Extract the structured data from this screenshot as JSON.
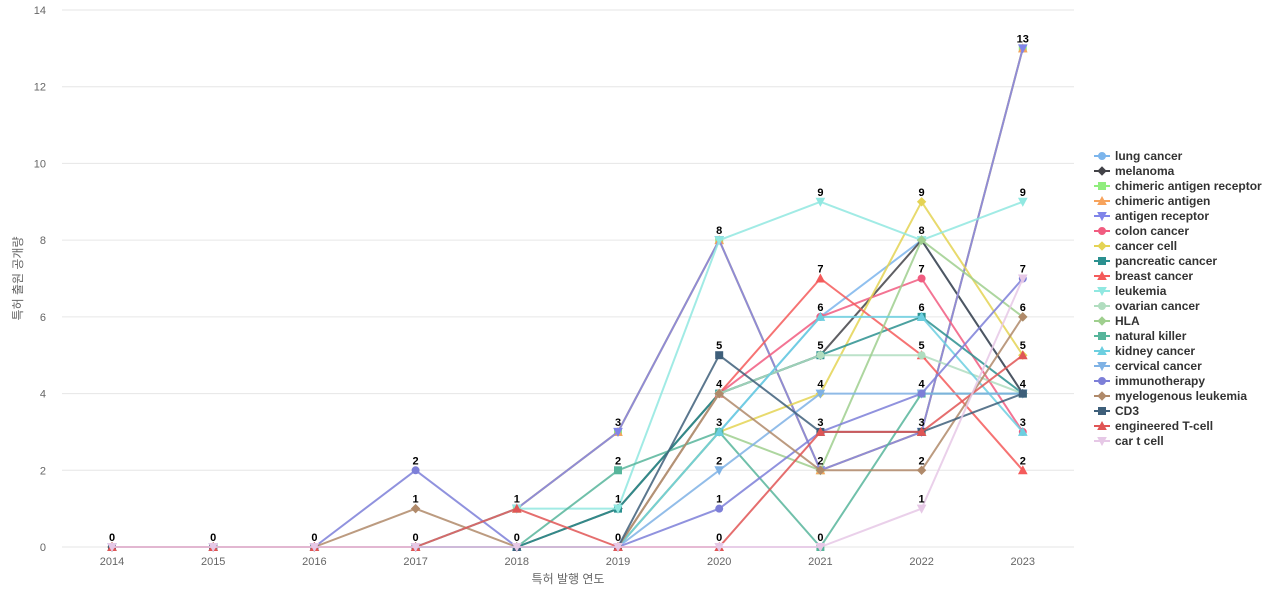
{
  "chart_data": {
    "type": "line",
    "title": "",
    "xlabel": "특허 발행 연도",
    "ylabel": "특허 출원 공개량",
    "ylim": [
      0,
      14
    ],
    "yticks": [
      0,
      2,
      4,
      6,
      8,
      10,
      12,
      14
    ],
    "categories": [
      "2014",
      "2015",
      "2016",
      "2017",
      "2018",
      "2019",
      "2020",
      "2021",
      "2022",
      "2023"
    ],
    "legend_position": "right",
    "series": [
      {
        "name": "lung cancer",
        "color": "#7cb5ec",
        "marker": "circle",
        "values": [
          0,
          0,
          0,
          0,
          0,
          0,
          3,
          6,
          8,
          4
        ]
      },
      {
        "name": "melanoma",
        "color": "#434348",
        "marker": "diamond",
        "values": [
          0,
          0,
          0,
          0,
          0,
          1,
          4,
          5,
          8,
          4
        ]
      },
      {
        "name": "chimeric antigen receptor",
        "color": "#90ed7d",
        "marker": "square",
        "values": [
          0,
          0,
          0,
          0,
          1,
          3,
          8,
          2,
          3,
          13
        ]
      },
      {
        "name": "chimeric antigen",
        "color": "#f7a35c",
        "marker": "triangle",
        "values": [
          0,
          0,
          0,
          0,
          1,
          3,
          8,
          2,
          3,
          13
        ]
      },
      {
        "name": "antigen receptor",
        "color": "#8085e9",
        "marker": "triangle-down",
        "values": [
          0,
          0,
          0,
          0,
          1,
          3,
          8,
          2,
          3,
          13
        ]
      },
      {
        "name": "colon cancer",
        "color": "#f15c80",
        "marker": "circle",
        "values": [
          0,
          0,
          0,
          0,
          0,
          0,
          4,
          6,
          7,
          3
        ]
      },
      {
        "name": "cancer cell",
        "color": "#e4d354",
        "marker": "diamond",
        "values": [
          0,
          0,
          0,
          0,
          0,
          0,
          3,
          4,
          9,
          5
        ]
      },
      {
        "name": "pancreatic cancer",
        "color": "#2b908f",
        "marker": "square",
        "values": [
          0,
          0,
          0,
          0,
          0,
          1,
          4,
          5,
          6,
          4
        ]
      },
      {
        "name": "breast cancer",
        "color": "#f45b5b",
        "marker": "triangle",
        "values": [
          0,
          0,
          0,
          0,
          0,
          0,
          4,
          7,
          5,
          2
        ]
      },
      {
        "name": "leukemia",
        "color": "#91e8e1",
        "marker": "triangle-down",
        "values": [
          0,
          0,
          0,
          0,
          1,
          1,
          8,
          9,
          8,
          9
        ]
      },
      {
        "name": "ovarian cancer",
        "color": "#b0ddbf",
        "marker": "circle",
        "values": [
          0,
          0,
          0,
          0,
          0,
          0,
          4,
          5,
          5,
          4
        ]
      },
      {
        "name": "HLA",
        "color": "#9fcf8e",
        "marker": "diamond",
        "values": [
          0,
          0,
          0,
          0,
          0,
          0,
          3,
          2,
          8,
          6
        ]
      },
      {
        "name": "natural killer",
        "color": "#57b59b",
        "marker": "square",
        "values": [
          0,
          0,
          0,
          0,
          0,
          2,
          3,
          0,
          4,
          4
        ]
      },
      {
        "name": "kidney cancer",
        "color": "#6ccfe0",
        "marker": "triangle",
        "values": [
          0,
          0,
          0,
          0,
          0,
          0,
          3,
          6,
          6,
          3
        ]
      },
      {
        "name": "cervical cancer",
        "color": "#7fb2e5",
        "marker": "triangle-down",
        "values": [
          0,
          0,
          0,
          0,
          0,
          0,
          2,
          4,
          4,
          4
        ]
      },
      {
        "name": "immunotherapy",
        "color": "#7d7fd8",
        "marker": "circle",
        "values": [
          0,
          0,
          0,
          2,
          0,
          0,
          1,
          3,
          4,
          7
        ]
      },
      {
        "name": "myelogenous leukemia",
        "color": "#b08a6a",
        "marker": "diamond",
        "values": [
          0,
          0,
          0,
          1,
          0,
          0,
          4,
          2,
          2,
          6
        ]
      },
      {
        "name": "CD3",
        "color": "#3e5f7a",
        "marker": "square",
        "values": [
          0,
          0,
          0,
          0,
          0,
          0,
          5,
          3,
          3,
          4
        ]
      },
      {
        "name": "engineered T-cell",
        "color": "#e05555",
        "marker": "triangle",
        "values": [
          0,
          0,
          0,
          0,
          1,
          0,
          0,
          3,
          3,
          5
        ]
      },
      {
        "name": "car t cell",
        "color": "#e6c8e6",
        "marker": "triangle-down",
        "values": [
          0,
          0,
          0,
          0,
          0,
          0,
          0,
          0,
          1,
          7
        ]
      }
    ],
    "data_labels": [
      {
        "x": "2014",
        "y": 0,
        "text": "0"
      },
      {
        "x": "2015",
        "y": 0,
        "text": "0"
      },
      {
        "x": "2016",
        "y": 0,
        "text": "0"
      },
      {
        "x": "2017",
        "y": 2,
        "text": "2"
      },
      {
        "x": "2017",
        "y": 1,
        "text": "1"
      },
      {
        "x": "2017",
        "y": 0,
        "text": "0"
      },
      {
        "x": "2018",
        "y": 1,
        "text": "1"
      },
      {
        "x": "2018",
        "y": 0,
        "text": "0"
      },
      {
        "x": "2019",
        "y": 3,
        "text": "3"
      },
      {
        "x": "2019",
        "y": 2,
        "text": "2"
      },
      {
        "x": "2019",
        "y": 1,
        "text": "1"
      },
      {
        "x": "2019",
        "y": 0,
        "text": "0"
      },
      {
        "x": "2020",
        "y": 8,
        "text": "8"
      },
      {
        "x": "2020",
        "y": 5,
        "text": "5"
      },
      {
        "x": "2020",
        "y": 4,
        "text": "4"
      },
      {
        "x": "2020",
        "y": 3,
        "text": "3"
      },
      {
        "x": "2020",
        "y": 2,
        "text": "2"
      },
      {
        "x": "2020",
        "y": 1,
        "text": "1"
      },
      {
        "x": "2020",
        "y": 0,
        "text": "0"
      },
      {
        "x": "2021",
        "y": 9,
        "text": "9"
      },
      {
        "x": "2021",
        "y": 7,
        "text": "7"
      },
      {
        "x": "2021",
        "y": 6,
        "text": "6"
      },
      {
        "x": "2021",
        "y": 5,
        "text": "5"
      },
      {
        "x": "2021",
        "y": 4,
        "text": "4"
      },
      {
        "x": "2021",
        "y": 3,
        "text": "3"
      },
      {
        "x": "2021",
        "y": 2,
        "text": "2"
      },
      {
        "x": "2021",
        "y": 0,
        "text": "0"
      },
      {
        "x": "2022",
        "y": 9,
        "text": "9"
      },
      {
        "x": "2022",
        "y": 8,
        "text": "8"
      },
      {
        "x": "2022",
        "y": 7,
        "text": "7"
      },
      {
        "x": "2022",
        "y": 6,
        "text": "6"
      },
      {
        "x": "2022",
        "y": 5,
        "text": "5"
      },
      {
        "x": "2022",
        "y": 4,
        "text": "4"
      },
      {
        "x": "2022",
        "y": 3,
        "text": "3"
      },
      {
        "x": "2022",
        "y": 2,
        "text": "2"
      },
      {
        "x": "2022",
        "y": 1,
        "text": "1"
      },
      {
        "x": "2023",
        "y": 13,
        "text": "13"
      },
      {
        "x": "2023",
        "y": 9,
        "text": "9"
      },
      {
        "x": "2023",
        "y": 7,
        "text": "7"
      },
      {
        "x": "2023",
        "y": 6,
        "text": "6"
      },
      {
        "x": "2023",
        "y": 5,
        "text": "5"
      },
      {
        "x": "2023",
        "y": 4,
        "text": "4"
      },
      {
        "x": "2023",
        "y": 3,
        "text": "3"
      },
      {
        "x": "2023",
        "y": 2,
        "text": "2"
      }
    ]
  }
}
